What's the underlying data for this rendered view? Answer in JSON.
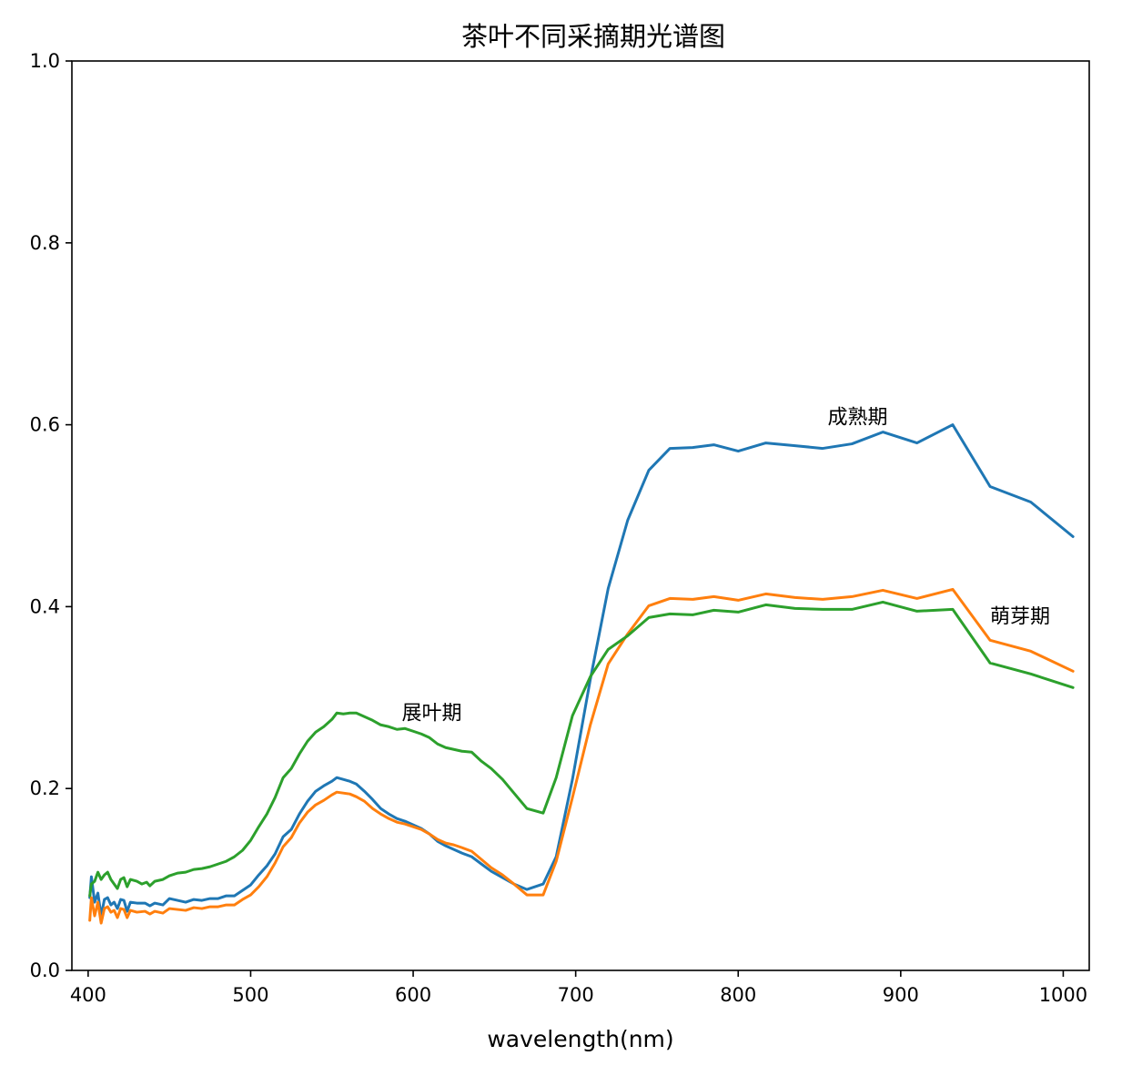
{
  "chart_data": {
    "type": "line",
    "title": "茶叶不同采摘期光谱图",
    "xlabel": "wavelength(nm)",
    "ylabel": "",
    "xlim": [
      390,
      1016
    ],
    "ylim": [
      0.0,
      1.0
    ],
    "xticks": [
      400,
      500,
      600,
      700,
      800,
      900,
      1000
    ],
    "yticks": [
      0.0,
      0.2,
      0.4,
      0.6,
      0.8,
      1.0
    ],
    "ytick_labels": [
      "0.0",
      "0.2",
      "0.4",
      "0.6",
      "0.8",
      "1.0"
    ],
    "grid": false,
    "legend": "none",
    "series": [
      {
        "color": "#1f77b4",
        "points": [
          [
            401,
            0.08
          ],
          [
            402,
            0.103
          ],
          [
            404,
            0.075
          ],
          [
            406,
            0.085
          ],
          [
            408,
            0.06
          ],
          [
            410,
            0.078
          ],
          [
            412,
            0.08
          ],
          [
            414,
            0.072
          ],
          [
            416,
            0.075
          ],
          [
            418,
            0.068
          ],
          [
            420,
            0.078
          ],
          [
            422,
            0.077
          ],
          [
            424,
            0.065
          ],
          [
            426,
            0.075
          ],
          [
            430,
            0.074
          ],
          [
            435,
            0.074
          ],
          [
            438,
            0.071
          ],
          [
            441,
            0.074
          ],
          [
            446,
            0.072
          ],
          [
            450,
            0.079
          ],
          [
            455,
            0.077
          ],
          [
            460,
            0.075
          ],
          [
            465,
            0.078
          ],
          [
            470,
            0.077
          ],
          [
            475,
            0.079
          ],
          [
            480,
            0.079
          ],
          [
            485,
            0.082
          ],
          [
            490,
            0.082
          ],
          [
            495,
            0.088
          ],
          [
            500,
            0.094
          ],
          [
            505,
            0.105
          ],
          [
            510,
            0.115
          ],
          [
            515,
            0.128
          ],
          [
            520,
            0.147
          ],
          [
            525,
            0.155
          ],
          [
            530,
            0.172
          ],
          [
            535,
            0.186
          ],
          [
            540,
            0.197
          ],
          [
            545,
            0.203
          ],
          [
            550,
            0.208
          ],
          [
            553,
            0.212
          ],
          [
            557,
            0.21
          ],
          [
            561,
            0.208
          ],
          [
            565,
            0.205
          ],
          [
            570,
            0.197
          ],
          [
            575,
            0.188
          ],
          [
            580,
            0.178
          ],
          [
            585,
            0.172
          ],
          [
            590,
            0.167
          ],
          [
            595,
            0.164
          ],
          [
            600,
            0.16
          ],
          [
            605,
            0.156
          ],
          [
            610,
            0.15
          ],
          [
            615,
            0.142
          ],
          [
            620,
            0.137
          ],
          [
            625,
            0.133
          ],
          [
            630,
            0.129
          ],
          [
            636,
            0.125
          ],
          [
            642,
            0.117
          ],
          [
            648,
            0.109
          ],
          [
            655,
            0.102
          ],
          [
            662,
            0.095
          ],
          [
            670,
            0.089
          ],
          [
            680,
            0.095
          ],
          [
            688,
            0.125
          ],
          [
            698,
            0.21
          ],
          [
            709,
            0.32
          ],
          [
            720,
            0.42
          ],
          [
            732,
            0.495
          ],
          [
            745,
            0.55
          ],
          [
            758,
            0.574
          ],
          [
            772,
            0.575
          ],
          [
            785,
            0.578
          ],
          [
            800,
            0.571
          ],
          [
            817,
            0.58
          ],
          [
            835,
            0.577
          ],
          [
            852,
            0.574
          ],
          [
            870,
            0.579
          ],
          [
            889,
            0.592
          ],
          [
            910,
            0.58
          ],
          [
            932,
            0.6
          ],
          [
            955,
            0.532
          ],
          [
            980,
            0.515
          ],
          [
            1006,
            0.477
          ]
        ]
      },
      {
        "color": "#ff7f0e",
        "points": [
          [
            401,
            0.055
          ],
          [
            402,
            0.08
          ],
          [
            404,
            0.06
          ],
          [
            406,
            0.075
          ],
          [
            408,
            0.052
          ],
          [
            410,
            0.068
          ],
          [
            412,
            0.07
          ],
          [
            414,
            0.064
          ],
          [
            416,
            0.066
          ],
          [
            418,
            0.058
          ],
          [
            420,
            0.068
          ],
          [
            422,
            0.067
          ],
          [
            424,
            0.058
          ],
          [
            426,
            0.066
          ],
          [
            430,
            0.064
          ],
          [
            435,
            0.065
          ],
          [
            438,
            0.062
          ],
          [
            441,
            0.065
          ],
          [
            446,
            0.063
          ],
          [
            450,
            0.068
          ],
          [
            455,
            0.067
          ],
          [
            460,
            0.066
          ],
          [
            465,
            0.069
          ],
          [
            470,
            0.068
          ],
          [
            475,
            0.07
          ],
          [
            480,
            0.07
          ],
          [
            485,
            0.072
          ],
          [
            490,
            0.072
          ],
          [
            495,
            0.078
          ],
          [
            500,
            0.083
          ],
          [
            505,
            0.092
          ],
          [
            510,
            0.103
          ],
          [
            515,
            0.118
          ],
          [
            520,
            0.136
          ],
          [
            525,
            0.146
          ],
          [
            530,
            0.162
          ],
          [
            535,
            0.174
          ],
          [
            540,
            0.182
          ],
          [
            545,
            0.187
          ],
          [
            550,
            0.193
          ],
          [
            553,
            0.196
          ],
          [
            557,
            0.195
          ],
          [
            561,
            0.194
          ],
          [
            565,
            0.191
          ],
          [
            570,
            0.186
          ],
          [
            575,
            0.178
          ],
          [
            580,
            0.172
          ],
          [
            585,
            0.167
          ],
          [
            590,
            0.163
          ],
          [
            595,
            0.161
          ],
          [
            600,
            0.158
          ],
          [
            605,
            0.155
          ],
          [
            610,
            0.15
          ],
          [
            615,
            0.144
          ],
          [
            620,
            0.14
          ],
          [
            625,
            0.138
          ],
          [
            630,
            0.135
          ],
          [
            636,
            0.131
          ],
          [
            642,
            0.122
          ],
          [
            648,
            0.113
          ],
          [
            655,
            0.105
          ],
          [
            662,
            0.095
          ],
          [
            670,
            0.083
          ],
          [
            680,
            0.083
          ],
          [
            688,
            0.12
          ],
          [
            698,
            0.19
          ],
          [
            709,
            0.27
          ],
          [
            720,
            0.337
          ],
          [
            732,
            0.37
          ],
          [
            745,
            0.401
          ],
          [
            758,
            0.409
          ],
          [
            772,
            0.408
          ],
          [
            785,
            0.411
          ],
          [
            800,
            0.407
          ],
          [
            817,
            0.414
          ],
          [
            835,
            0.41
          ],
          [
            852,
            0.408
          ],
          [
            870,
            0.411
          ],
          [
            889,
            0.418
          ],
          [
            910,
            0.409
          ],
          [
            932,
            0.419
          ],
          [
            955,
            0.363
          ],
          [
            980,
            0.351
          ],
          [
            1006,
            0.329
          ]
        ]
      },
      {
        "color": "#2ca02c",
        "points": [
          [
            401,
            0.082
          ],
          [
            402,
            0.095
          ],
          [
            404,
            0.098
          ],
          [
            406,
            0.108
          ],
          [
            408,
            0.1
          ],
          [
            410,
            0.105
          ],
          [
            412,
            0.108
          ],
          [
            414,
            0.1
          ],
          [
            416,
            0.095
          ],
          [
            418,
            0.09
          ],
          [
            420,
            0.1
          ],
          [
            422,
            0.102
          ],
          [
            424,
            0.092
          ],
          [
            426,
            0.1
          ],
          [
            430,
            0.098
          ],
          [
            433,
            0.095
          ],
          [
            436,
            0.097
          ],
          [
            438,
            0.093
          ],
          [
            441,
            0.098
          ],
          [
            446,
            0.1
          ],
          [
            450,
            0.104
          ],
          [
            455,
            0.107
          ],
          [
            460,
            0.108
          ],
          [
            465,
            0.111
          ],
          [
            470,
            0.112
          ],
          [
            475,
            0.114
          ],
          [
            480,
            0.117
          ],
          [
            485,
            0.12
          ],
          [
            490,
            0.125
          ],
          [
            495,
            0.132
          ],
          [
            500,
            0.143
          ],
          [
            505,
            0.158
          ],
          [
            510,
            0.172
          ],
          [
            515,
            0.19
          ],
          [
            520,
            0.212
          ],
          [
            525,
            0.222
          ],
          [
            530,
            0.238
          ],
          [
            535,
            0.252
          ],
          [
            540,
            0.262
          ],
          [
            545,
            0.268
          ],
          [
            550,
            0.276
          ],
          [
            553,
            0.283
          ],
          [
            557,
            0.282
          ],
          [
            561,
            0.283
          ],
          [
            565,
            0.283
          ],
          [
            570,
            0.279
          ],
          [
            575,
            0.275
          ],
          [
            580,
            0.27
          ],
          [
            585,
            0.268
          ],
          [
            590,
            0.265
          ],
          [
            595,
            0.266
          ],
          [
            600,
            0.263
          ],
          [
            605,
            0.26
          ],
          [
            610,
            0.256
          ],
          [
            615,
            0.249
          ],
          [
            620,
            0.245
          ],
          [
            625,
            0.243
          ],
          [
            630,
            0.241
          ],
          [
            636,
            0.24
          ],
          [
            642,
            0.23
          ],
          [
            648,
            0.222
          ],
          [
            655,
            0.21
          ],
          [
            662,
            0.195
          ],
          [
            670,
            0.178
          ],
          [
            680,
            0.173
          ],
          [
            688,
            0.212
          ],
          [
            698,
            0.28
          ],
          [
            709,
            0.323
          ],
          [
            720,
            0.353
          ],
          [
            732,
            0.368
          ],
          [
            745,
            0.388
          ],
          [
            758,
            0.392
          ],
          [
            772,
            0.391
          ],
          [
            785,
            0.396
          ],
          [
            800,
            0.394
          ],
          [
            817,
            0.402
          ],
          [
            835,
            0.398
          ],
          [
            852,
            0.397
          ],
          [
            870,
            0.397
          ],
          [
            889,
            0.405
          ],
          [
            910,
            0.395
          ],
          [
            932,
            0.397
          ],
          [
            955,
            0.338
          ],
          [
            980,
            0.326
          ],
          [
            1006,
            0.311
          ]
        ]
      }
    ],
    "annotations": [
      {
        "text": "展叶期",
        "x": 593,
        "y": 0.276
      },
      {
        "text": "成熟期",
        "x": 855,
        "y": 0.601
      },
      {
        "text": "萌芽期",
        "x": 955,
        "y": 0.382
      }
    ]
  }
}
